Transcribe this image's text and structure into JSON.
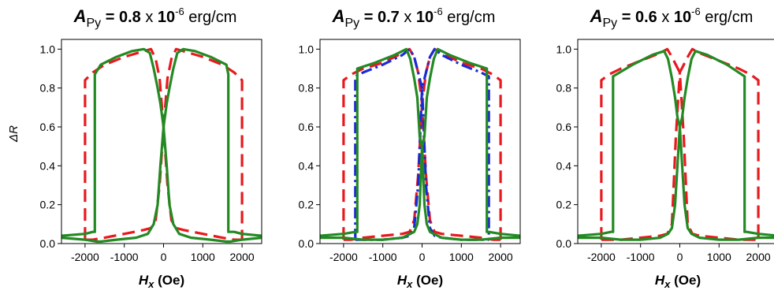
{
  "chart_data": [
    {
      "type": "line",
      "title": {
        "symbol": "A",
        "subscript": "Py",
        "eq": " = ",
        "value": "0.8",
        "times": " x ",
        "base": "10",
        "exponent": "-6",
        "unit": " erg/cm"
      },
      "xlabel": {
        "symbol": "H",
        "subscript": "x",
        "unit": " (Oe)"
      },
      "ylabel": "ΔR",
      "xlim": [
        -2600,
        2500
      ],
      "ylim": [
        0,
        1.05
      ],
      "xticks": [
        -2000,
        -1000,
        0,
        1000,
        2000
      ],
      "xtick_labels": [
        "-2000",
        "-1000",
        "0",
        "1000",
        "2000"
      ],
      "yticks": [
        0.0,
        0.2,
        0.4,
        0.6,
        0.8,
        1.0
      ],
      "ytick_labels": [
        "0.0",
        "0.2",
        "0.4",
        "0.6",
        "0.8",
        "1.0"
      ],
      "series": [
        {
          "color": "#e8191e",
          "style": "dashed",
          "x": [
            -2000,
            -2000,
            -1800,
            -1500,
            -1000,
            -500,
            -320,
            -200,
            -100,
            0,
            100,
            200,
            320,
            500,
            1000,
            1500,
            1800,
            2000,
            2000
          ],
          "y": [
            0.02,
            0.84,
            0.88,
            0.92,
            0.96,
            0.99,
            1.0,
            0.95,
            0.85,
            0.6,
            0.3,
            0.12,
            0.08,
            0.07,
            0.05,
            0.03,
            0.02,
            0.02,
            0.02
          ]
        },
        {
          "color": "#e8191e",
          "style": "dashed",
          "x": [
            -2000,
            -2000,
            -1800,
            -1500,
            -1000,
            -500,
            -320,
            -200,
            -100,
            0,
            100,
            200,
            320,
            500,
            1000,
            1500,
            1800,
            2000,
            2000
          ],
          "y": [
            0.02,
            0.02,
            0.02,
            0.03,
            0.05,
            0.07,
            0.08,
            0.12,
            0.3,
            0.6,
            0.85,
            0.95,
            1.0,
            0.99,
            0.96,
            0.92,
            0.88,
            0.84,
            0.02
          ]
        },
        {
          "color": "#238a23",
          "style": "solid",
          "x": [
            -2600,
            -2000,
            -1800,
            -1750,
            -1750,
            -1600,
            -1200,
            -800,
            -500,
            -350,
            -250,
            -150,
            -80,
            0,
            80,
            150,
            250,
            400,
            700,
            1200,
            1600,
            1700,
            2000,
            2500
          ],
          "y": [
            0.04,
            0.05,
            0.06,
            0.06,
            0.87,
            0.92,
            0.96,
            0.99,
            1.0,
            0.98,
            0.9,
            0.8,
            0.72,
            0.6,
            0.4,
            0.2,
            0.1,
            0.05,
            0.03,
            0.02,
            0.01,
            0.01,
            0.02,
            0.03
          ]
        },
        {
          "color": "#238a23",
          "style": "solid",
          "x": [
            -2600,
            -2000,
            -1700,
            -1600,
            -1200,
            -700,
            -400,
            -250,
            -150,
            -80,
            0,
            80,
            150,
            250,
            350,
            500,
            800,
            1200,
            1600,
            1650,
            1650,
            1800,
            2000,
            2500
          ],
          "y": [
            0.03,
            0.02,
            0.01,
            0.01,
            0.02,
            0.03,
            0.05,
            0.1,
            0.2,
            0.4,
            0.6,
            0.72,
            0.8,
            0.9,
            0.98,
            1.0,
            0.99,
            0.96,
            0.92,
            0.87,
            0.06,
            0.06,
            0.05,
            0.04
          ]
        }
      ]
    },
    {
      "type": "line",
      "title": {
        "symbol": "A",
        "subscript": "Py",
        "eq": " = ",
        "value": "0.7",
        "times": " x ",
        "base": "10",
        "exponent": "-6",
        "unit": " erg/cm"
      },
      "xlabel": {
        "symbol": "H",
        "subscript": "x",
        "unit": " (Oe)"
      },
      "ylabel": "",
      "xlim": [
        -2600,
        2500
      ],
      "ylim": [
        0,
        1.05
      ],
      "xticks": [
        -2000,
        -1000,
        0,
        1000,
        2000
      ],
      "xtick_labels": [
        "-2000",
        "-1000",
        "0",
        "1000",
        "2000"
      ],
      "yticks": [
        0.0,
        0.2,
        0.4,
        0.6,
        0.8,
        1.0
      ],
      "ytick_labels": [
        "0.0",
        "0.2",
        "0.4",
        "0.6",
        "0.8",
        "1.0"
      ],
      "series": [
        {
          "color": "#e8191e",
          "style": "dashed",
          "x": [
            -2000,
            -2000,
            -1800,
            -1500,
            -1000,
            -500,
            -320,
            -200,
            -100,
            0,
            100,
            200,
            320,
            500,
            1000,
            1500,
            1800,
            2000,
            2000
          ],
          "y": [
            0.02,
            0.84,
            0.87,
            0.9,
            0.93,
            0.98,
            1.0,
            0.96,
            0.88,
            0.72,
            0.35,
            0.12,
            0.06,
            0.05,
            0.04,
            0.03,
            0.02,
            0.02,
            0.02
          ]
        },
        {
          "color": "#e8191e",
          "style": "dashed",
          "x": [
            -2000,
            -2000,
            -1800,
            -1500,
            -1000,
            -500,
            -320,
            -200,
            -100,
            0,
            100,
            200,
            320,
            500,
            1000,
            1500,
            1800,
            2000,
            2000
          ],
          "y": [
            0.02,
            0.02,
            0.02,
            0.03,
            0.04,
            0.05,
            0.06,
            0.12,
            0.35,
            0.72,
            0.88,
            0.96,
            1.0,
            0.98,
            0.93,
            0.9,
            0.87,
            0.84,
            0.02
          ]
        },
        {
          "color": "#1a2bd6",
          "style": "dashdot",
          "x": [
            -1700,
            -1700,
            -1500,
            -1000,
            -500,
            -320,
            -200,
            -100,
            0,
            100,
            200,
            320,
            500,
            1000,
            1500,
            1700
          ],
          "y": [
            0.02,
            0.86,
            0.88,
            0.92,
            0.97,
            1.0,
            0.96,
            0.88,
            0.8,
            0.3,
            0.08,
            0.04,
            0.03,
            0.02,
            0.02,
            0.02
          ]
        },
        {
          "color": "#1a2bd6",
          "style": "dashdot",
          "x": [
            -1700,
            -1500,
            -1000,
            -500,
            -320,
            -200,
            -100,
            0,
            100,
            200,
            320,
            500,
            1000,
            1500,
            1700,
            1700
          ],
          "y": [
            0.02,
            0.02,
            0.02,
            0.03,
            0.04,
            0.08,
            0.3,
            0.8,
            0.88,
            0.96,
            1.0,
            0.97,
            0.92,
            0.88,
            0.86,
            0.02
          ]
        },
        {
          "color": "#238a23",
          "style": "solid",
          "x": [
            -2600,
            -2000,
            -1700,
            -1650,
            -1650,
            -1200,
            -700,
            -400,
            -300,
            -200,
            -120,
            -60,
            0,
            60,
            120,
            200,
            300,
            500,
            1000,
            1500,
            2000,
            2500
          ],
          "y": [
            0.04,
            0.05,
            0.06,
            0.06,
            0.9,
            0.93,
            0.97,
            1.0,
            0.95,
            0.85,
            0.75,
            0.55,
            0.5,
            0.2,
            0.1,
            0.06,
            0.05,
            0.03,
            0.02,
            0.02,
            0.03,
            0.03
          ]
        },
        {
          "color": "#238a23",
          "style": "solid",
          "x": [
            -2600,
            -2000,
            -1500,
            -1000,
            -500,
            -300,
            -200,
            -120,
            -60,
            0,
            60,
            120,
            200,
            300,
            400,
            700,
            1200,
            1650,
            1650,
            1700,
            2000,
            2500
          ],
          "y": [
            0.03,
            0.03,
            0.02,
            0.02,
            0.03,
            0.05,
            0.06,
            0.1,
            0.2,
            0.5,
            0.55,
            0.75,
            0.85,
            0.95,
            1.0,
            0.97,
            0.93,
            0.9,
            0.06,
            0.06,
            0.05,
            0.04
          ]
        }
      ]
    },
    {
      "type": "line",
      "title": {
        "symbol": "A",
        "subscript": "Py",
        "eq": " = ",
        "value": "0.6",
        "times": " x ",
        "base": "10",
        "exponent": "-6",
        "unit": " erg/cm"
      },
      "xlabel": {
        "symbol": "H",
        "subscript": "x",
        "unit": " (Oe)"
      },
      "ylabel": "",
      "xlim": [
        -2600,
        2500
      ],
      "ylim": [
        0,
        1.05
      ],
      "xticks": [
        -2000,
        -1000,
        0,
        1000,
        2000
      ],
      "xtick_labels": [
        "-2000",
        "-1000",
        "0",
        "1000",
        "2000"
      ],
      "yticks": [
        0.0,
        0.2,
        0.4,
        0.6,
        0.8,
        1.0
      ],
      "ytick_labels": [
        "0.0",
        "0.2",
        "0.4",
        "0.6",
        "0.8",
        "1.0"
      ],
      "series": [
        {
          "color": "#e8191e",
          "style": "dashed",
          "x": [
            -2000,
            -2000,
            -1800,
            -1500,
            -1000,
            -500,
            -320,
            -200,
            -100,
            0,
            100,
            200,
            320,
            500,
            1000,
            1500,
            1800,
            2000,
            2000
          ],
          "y": [
            0.02,
            0.84,
            0.87,
            0.9,
            0.94,
            0.98,
            1.0,
            0.96,
            0.92,
            0.88,
            0.55,
            0.1,
            0.05,
            0.04,
            0.03,
            0.02,
            0.02,
            0.02,
            0.02
          ]
        },
        {
          "color": "#e8191e",
          "style": "dashed",
          "x": [
            -2000,
            -2000,
            -1800,
            -1500,
            -1000,
            -500,
            -320,
            -200,
            -100,
            0,
            100,
            200,
            320,
            500,
            1000,
            1500,
            1800,
            2000,
            2000
          ],
          "y": [
            0.02,
            0.02,
            0.02,
            0.02,
            0.03,
            0.04,
            0.05,
            0.1,
            0.55,
            0.88,
            0.92,
            0.96,
            1.0,
            0.98,
            0.94,
            0.9,
            0.87,
            0.84,
            0.02
          ]
        },
        {
          "color": "#238a23",
          "style": "solid",
          "x": [
            -2600,
            -2000,
            -1750,
            -1700,
            -1700,
            -1200,
            -700,
            -400,
            -300,
            -200,
            -120,
            -60,
            0,
            60,
            120,
            200,
            300,
            500,
            1000,
            1500,
            2000,
            2500
          ],
          "y": [
            0.04,
            0.05,
            0.06,
            0.06,
            0.86,
            0.92,
            0.97,
            0.99,
            0.95,
            0.85,
            0.75,
            0.65,
            0.6,
            0.4,
            0.2,
            0.08,
            0.05,
            0.03,
            0.02,
            0.02,
            0.03,
            0.03
          ]
        },
        {
          "color": "#238a23",
          "style": "solid",
          "x": [
            -2600,
            -2000,
            -1500,
            -1000,
            -500,
            -300,
            -200,
            -120,
            -60,
            0,
            60,
            120,
            200,
            300,
            400,
            700,
            1200,
            1650,
            1650,
            1700,
            2000,
            2500
          ],
          "y": [
            0.03,
            0.03,
            0.02,
            0.02,
            0.03,
            0.05,
            0.08,
            0.2,
            0.4,
            0.6,
            0.65,
            0.75,
            0.85,
            0.95,
            0.99,
            0.97,
            0.92,
            0.86,
            0.06,
            0.06,
            0.05,
            0.04
          ]
        }
      ]
    }
  ]
}
